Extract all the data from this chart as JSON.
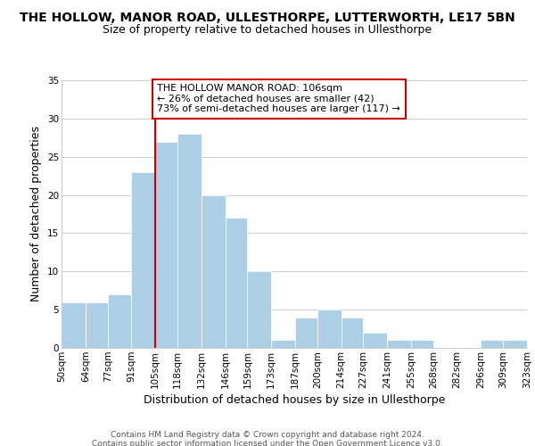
{
  "title": "THE HOLLOW, MANOR ROAD, ULLESTHORPE, LUTTERWORTH, LE17 5BN",
  "subtitle": "Size of property relative to detached houses in Ullesthorpe",
  "xlabel": "Distribution of detached houses by size in Ullesthorpe",
  "ylabel": "Number of detached properties",
  "footer_line1": "Contains HM Land Registry data © Crown copyright and database right 2024.",
  "footer_line2": "Contains public sector information licensed under the Open Government Licence v3.0.",
  "bin_edges": [
    50,
    64,
    77,
    91,
    105,
    118,
    132,
    146,
    159,
    173,
    187,
    200,
    214,
    227,
    241,
    255,
    268,
    282,
    296,
    309,
    323
  ],
  "bin_labels": [
    "50sqm",
    "64sqm",
    "77sqm",
    "91sqm",
    "105sqm",
    "118sqm",
    "132sqm",
    "146sqm",
    "159sqm",
    "173sqm",
    "187sqm",
    "200sqm",
    "214sqm",
    "227sqm",
    "241sqm",
    "255sqm",
    "268sqm",
    "282sqm",
    "296sqm",
    "309sqm",
    "323sqm"
  ],
  "counts": [
    6,
    6,
    7,
    23,
    27,
    28,
    20,
    17,
    10,
    1,
    4,
    5,
    4,
    2,
    1,
    1,
    0,
    0,
    1,
    1
  ],
  "bar_color": "#aed0e6",
  "bar_border_color": "#ffffff",
  "property_line_x": 105,
  "property_line_color": "#cc0000",
  "annotation_text": "THE HOLLOW MANOR ROAD: 106sqm\n← 26% of detached houses are smaller (42)\n73% of semi-detached houses are larger (117) →",
  "annotation_box_color": "#ffffff",
  "annotation_box_edge": "#cc0000",
  "ylim": [
    0,
    35
  ],
  "yticks": [
    0,
    5,
    10,
    15,
    20,
    25,
    30,
    35
  ],
  "background_color": "#ffffff",
  "grid_color": "#cccccc",
  "title_fontsize": 10,
  "subtitle_fontsize": 9,
  "axis_label_fontsize": 9,
  "tick_fontsize": 7.5,
  "annotation_fontsize": 8,
  "footer_fontsize": 6.5
}
